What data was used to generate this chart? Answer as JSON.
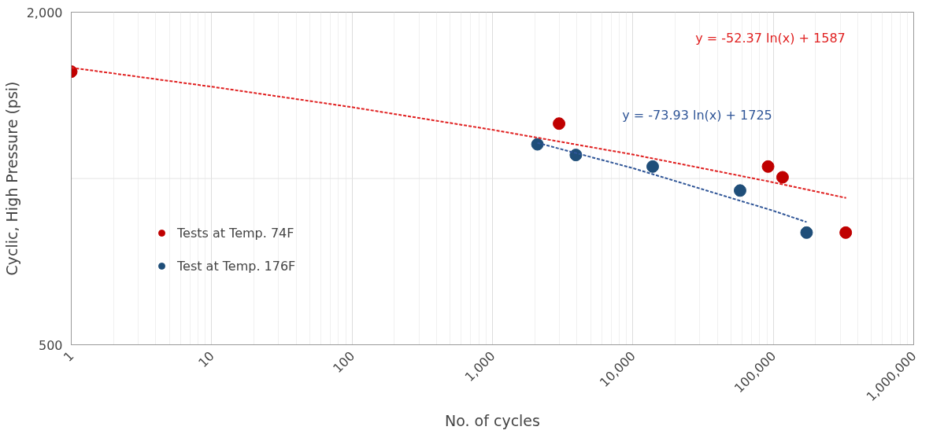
{
  "chart_data": {
    "type": "scatter",
    "xlabel": "No. of cycles",
    "ylabel": "Cyclic, High Pressure (psi)",
    "log": "xy",
    "grid": true,
    "legend": "left",
    "xlim": [
      1,
      1000000
    ],
    "ylim": [
      500,
      2000
    ],
    "xticks": [
      {
        "value": 1,
        "label": "1"
      },
      {
        "value": 10,
        "label": "10"
      },
      {
        "value": 100,
        "label": "100"
      },
      {
        "value": 1000,
        "label": "1,000"
      },
      {
        "value": 10000,
        "label": "10,000"
      },
      {
        "value": 100000,
        "label": "100,000"
      },
      {
        "value": 1000000,
        "label": "1,000,000"
      }
    ],
    "yticks": [
      {
        "value": 500,
        "label": "500"
      },
      {
        "value": 2000,
        "label": "2,000"
      }
    ],
    "series": [
      {
        "name": "Tests at Temp. 74F",
        "marker": "circle",
        "color": "#c00000",
        "x": [
          1,
          2980,
          91800,
          116400,
          328000
        ],
        "values": [
          1561,
          1257,
          1051,
          1005,
          798
        ]
      },
      {
        "name": "Test at Temp. 176F",
        "marker": "circle",
        "color": "#1f4e79",
        "x": [
          2090,
          3925,
          13840,
          58000,
          172600
        ],
        "values": [
          1153,
          1103,
          1051,
          951,
          798
        ]
      },
      {
        "type": "line",
        "line_style": "dashed",
        "color": "#e02020",
        "x": [
          1,
          10,
          100,
          1000,
          10000,
          100000,
          330000
        ],
        "values": [
          1587,
          1466,
          1346,
          1225,
          1105,
          984,
          922
        ]
      },
      {
        "type": "line",
        "line_style": "dashed",
        "color": "#2f5597",
        "x": [
          2090,
          10000,
          100000,
          172600
        ],
        "values": [
          1160,
          1044,
          874,
          834
        ]
      }
    ],
    "ref_lines": [
      {
        "axis": "y",
        "value": 1000,
        "color": "#e4e4e4"
      }
    ],
    "annotations": [
      "y = -52.37 ln(x) + 1587",
      "y = -73.93 ln(x) + 1725"
    ]
  }
}
